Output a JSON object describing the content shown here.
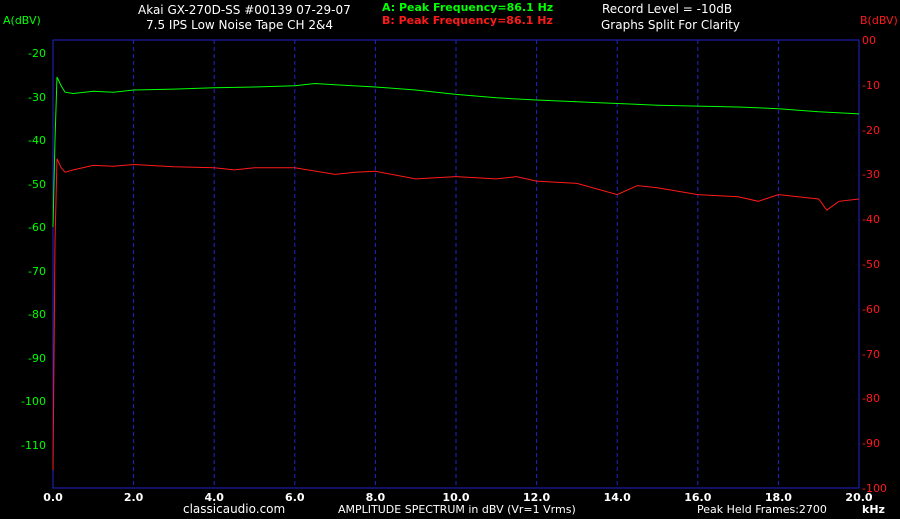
{
  "header": {
    "title_line1": "Akai GX-270D-SS  #00139  07-29-07",
    "title_line2": "7.5 IPS  Low Noise Tape  CH 2&4",
    "peak_a": "A: Peak Frequency=86.1 Hz",
    "peak_b": "B: Peak Frequency=86.1 Hz",
    "record_level": "Record Level = -10dB",
    "split_note": "Graphs Split For Clarity"
  },
  "footer": {
    "site": "classicaudio.com",
    "caption": "AMPLITUDE SPECTRUM in dBV (Vr=1 Vrms)",
    "peak_held": "Peak Held Frames:2700"
  },
  "colors": {
    "grid": "#2222cc",
    "series_a": "#00ff00",
    "series_b": "#ff1a1a",
    "text": "#ffffff"
  },
  "chart_data": {
    "type": "line",
    "xlabel": "kHz",
    "x_ticks": [
      "0.0",
      "2.0",
      "4.0",
      "6.0",
      "8.0",
      "10.0",
      "12.0",
      "14.0",
      "16.0",
      "18.0",
      "20.0"
    ],
    "xlim": [
      0,
      20
    ],
    "y_left": {
      "label": "A(dBV)",
      "ylim": [
        -120,
        -17
      ],
      "ticks": [
        -20,
        -30,
        -40,
        -50,
        -60,
        -70,
        -80,
        -90,
        -100,
        -110
      ],
      "tick_labels": [
        "-20",
        "-30",
        "-40",
        "-50",
        "-60",
        "-70",
        "-80",
        "-90",
        "-100",
        "-110"
      ]
    },
    "y_right": {
      "label": "B(dBV)",
      "ylim": [
        -100,
        0
      ],
      "ticks": [
        0,
        -10,
        -20,
        -30,
        -40,
        -50,
        -60,
        -70,
        -80,
        -90,
        -100
      ],
      "tick_labels": [
        "00",
        "-10",
        "-20",
        "-30",
        "-40",
        "-50",
        "-60",
        "-70",
        "-80",
        "-90",
        "-100"
      ]
    },
    "series": [
      {
        "axis": "left",
        "color": "#00ff00",
        "x": [
          0.0,
          0.05,
          0.1,
          0.2,
          0.3,
          0.5,
          1.0,
          1.5,
          2.0,
          3.0,
          4.0,
          5.0,
          6.0,
          6.5,
          7.0,
          8.0,
          9.0,
          10.0,
          11.0,
          12.0,
          13.0,
          14.0,
          15.0,
          16.0,
          17.0,
          18.0,
          19.0,
          20.0
        ],
        "y": [
          -60.0,
          -40.0,
          -25.5,
          -27.5,
          -29.0,
          -29.3,
          -28.8,
          -29.0,
          -28.5,
          -28.3,
          -28.0,
          -27.8,
          -27.5,
          -27.0,
          -27.3,
          -27.8,
          -28.5,
          -29.5,
          -30.3,
          -30.8,
          -31.2,
          -31.6,
          -32.0,
          -32.2,
          -32.4,
          -32.8,
          -33.5,
          -34.0
        ]
      },
      {
        "axis": "right",
        "color": "#ff1a1a",
        "x": [
          0.0,
          0.05,
          0.1,
          0.2,
          0.3,
          0.5,
          1.0,
          1.5,
          2.0,
          3.0,
          4.0,
          4.5,
          5.0,
          6.0,
          7.0,
          7.5,
          8.0,
          9.0,
          10.0,
          11.0,
          11.5,
          12.0,
          13.0,
          14.0,
          14.5,
          15.0,
          16.0,
          17.0,
          17.5,
          18.0,
          19.0,
          19.2,
          19.5,
          20.0
        ],
        "y": [
          -96.0,
          -45.0,
          -26.5,
          -28.5,
          -29.5,
          -29.0,
          -28.0,
          -28.2,
          -27.8,
          -28.3,
          -28.5,
          -29.0,
          -28.5,
          -28.5,
          -30.0,
          -29.5,
          -29.3,
          -31.0,
          -30.5,
          -31.0,
          -30.5,
          -31.5,
          -32.0,
          -34.5,
          -32.5,
          -33.0,
          -34.5,
          -35.0,
          -36.0,
          -34.5,
          -35.5,
          -38.0,
          -36.0,
          -35.5
        ]
      }
    ]
  }
}
